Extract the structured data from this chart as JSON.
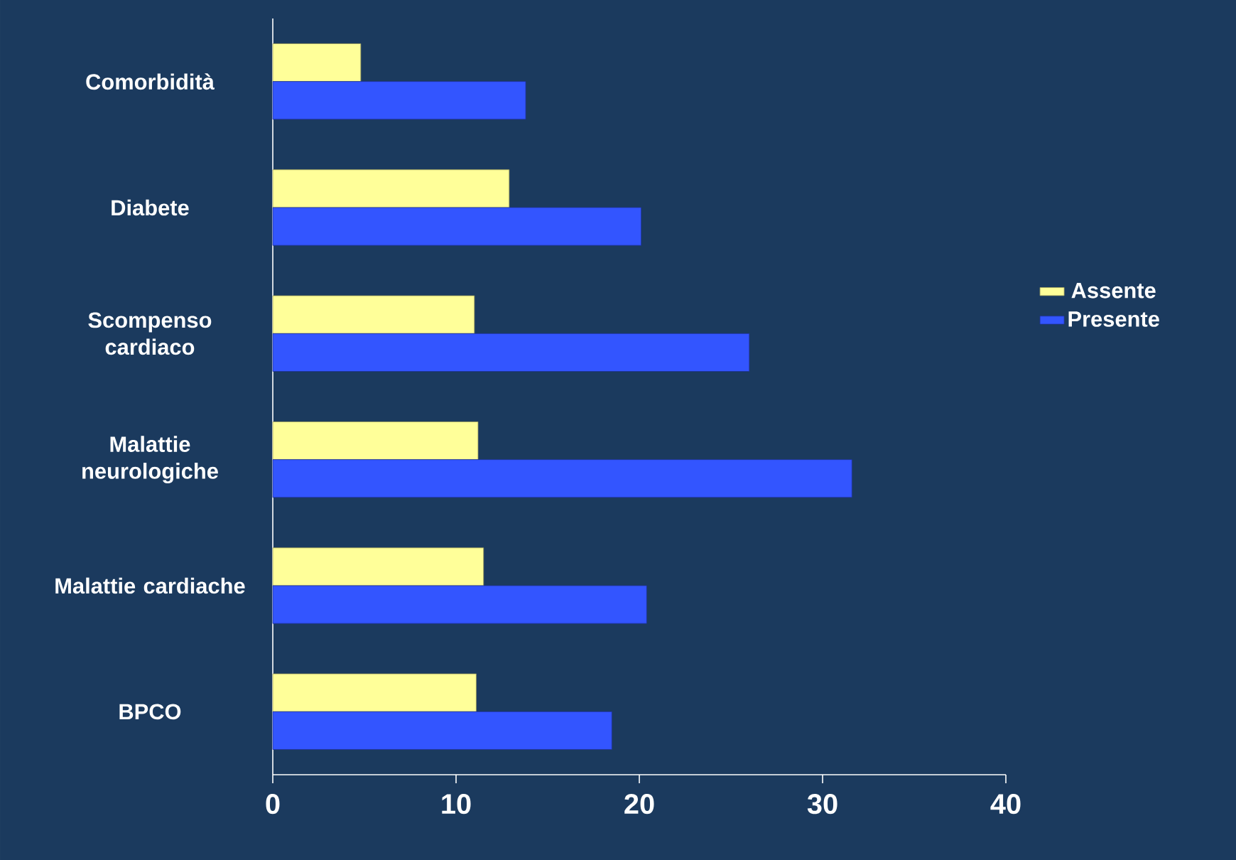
{
  "chart_data": {
    "type": "bar",
    "orientation": "horizontal",
    "categories": [
      "Comorbidità",
      "Diabete",
      "Scompenso cardiaco",
      "Malattie neurologiche",
      "Malattie cardiache",
      "BPCO"
    ],
    "series": [
      {
        "name": "Assente",
        "color": "#ffff99",
        "values": [
          4.8,
          12.9,
          11.0,
          11.2,
          11.5,
          11.1
        ]
      },
      {
        "name": "Presente",
        "color": "#3355ff",
        "values": [
          13.8,
          20.1,
          26.0,
          31.6,
          20.4,
          18.5
        ]
      }
    ],
    "xlim": [
      0,
      40
    ],
    "xticks": [
      0,
      10,
      20,
      30,
      40
    ],
    "legend": "right"
  }
}
